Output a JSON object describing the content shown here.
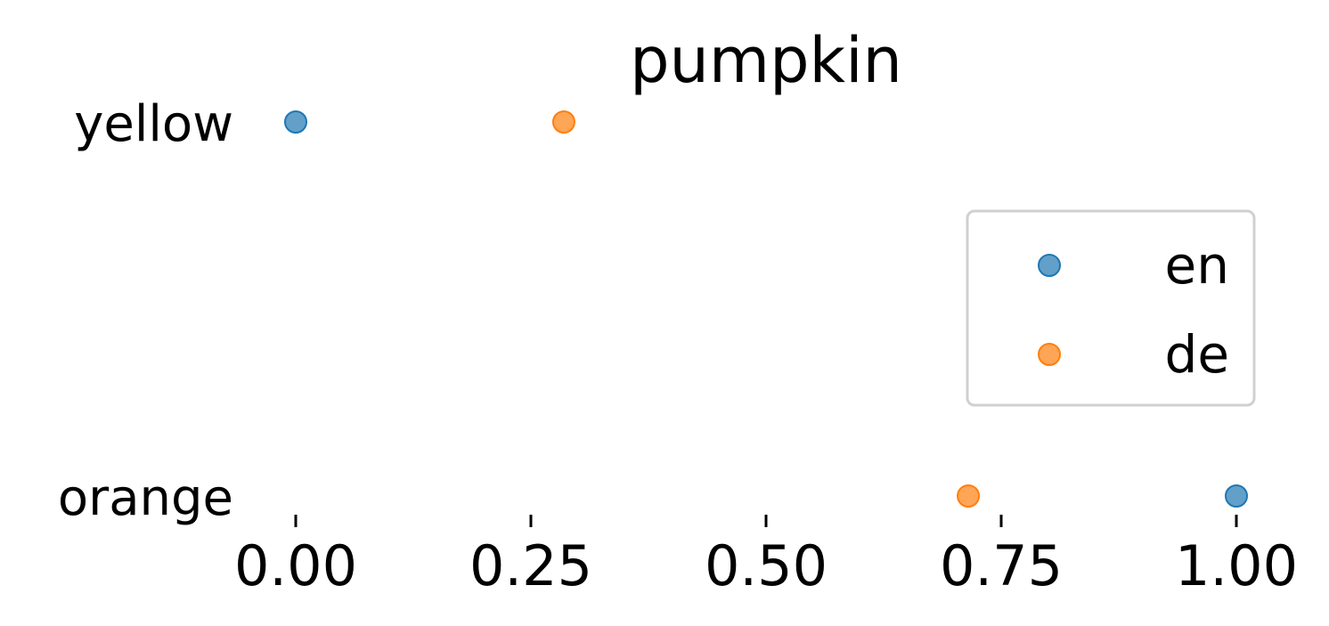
{
  "chart_data": {
    "type": "scatter",
    "title": "pumpkin",
    "xlabel": "",
    "ylabel": "",
    "xlim": [
      0.0,
      1.0
    ],
    "xticks": [
      "0.00",
      "0.25",
      "0.50",
      "0.75",
      "1.00"
    ],
    "categories": [
      "yellow",
      "orange"
    ],
    "series": [
      {
        "name": "en",
        "color": "#1f77b4",
        "values": [
          0.0,
          1.0
        ]
      },
      {
        "name": "de",
        "color": "#ff7f0e",
        "values": [
          0.285,
          0.715
        ]
      }
    ],
    "legend": {
      "position": "right",
      "entries": [
        "en",
        "de"
      ]
    },
    "grid": false
  }
}
